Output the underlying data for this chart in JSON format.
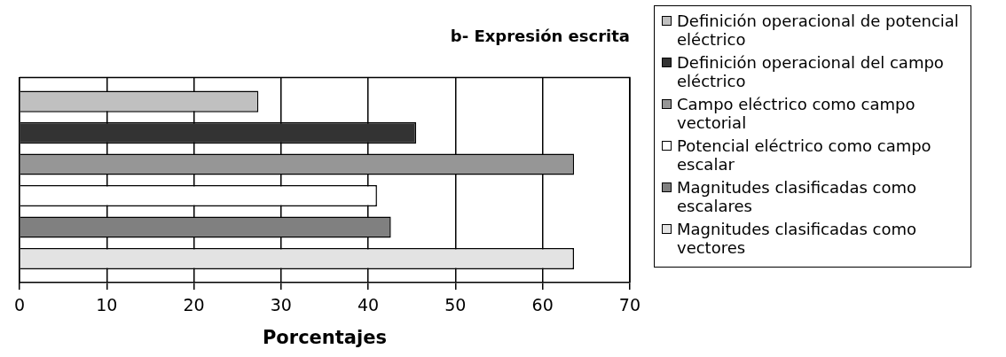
{
  "chart_data": {
    "type": "bar",
    "orientation": "horizontal",
    "title": "b- Expresión escrita",
    "xlabel": "Porcentajes",
    "categories": [
      null
    ],
    "series": [
      {
        "name": "Definición operacional de potencial eléctrico",
        "color": "#c0c0c0",
        "values": [
          27.4
        ]
      },
      {
        "name": "Definición operacional del campo eléctrico",
        "color": "#333333",
        "values": [
          45.5
        ]
      },
      {
        "name": "Campo eléctrico como campo vectorial",
        "color": "#969696",
        "values": [
          63.6
        ]
      },
      {
        "name": "Potencial eléctrico como campo escalar",
        "color": "#ffffff",
        "values": [
          41.0
        ]
      },
      {
        "name": "Magnitudes clasificadas como escalares",
        "color": "#808080",
        "values": [
          42.6
        ]
      },
      {
        "name": "Magnitudes clasificadas como vectores",
        "color": "#e3e3e3",
        "values": [
          63.6
        ]
      }
    ],
    "xlim": [
      0,
      70
    ],
    "xticks": [
      0,
      10,
      20,
      30,
      40,
      50,
      60,
      70
    ],
    "grid": "x",
    "legend": "right"
  }
}
